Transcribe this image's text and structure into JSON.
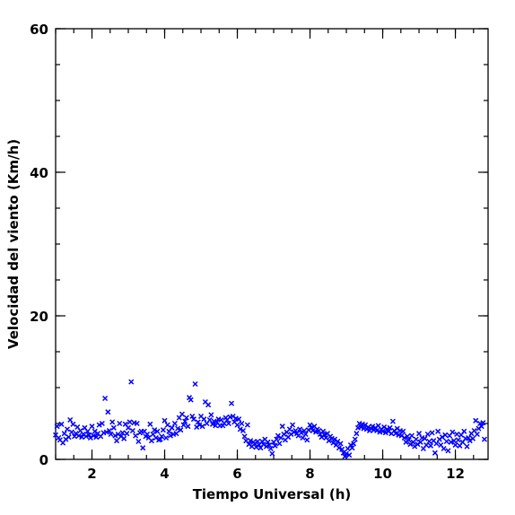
{
  "chart_data": {
    "type": "scatter",
    "xlabel": "Tiempo Universal (h)",
    "ylabel": "Velocidad del viento (Km/h)",
    "xlim": [
      1,
      12.9
    ],
    "ylim": [
      0,
      60
    ],
    "x_ticks": [
      2,
      4,
      6,
      8,
      10,
      12
    ],
    "y_ticks": [
      0,
      20,
      40,
      60
    ],
    "x_minor_step": 0.5,
    "y_minor_step": 5,
    "marker": "x",
    "color": "#0000ff",
    "points": [
      [
        1.0,
        3.4
      ],
      [
        1.04,
        4.6
      ],
      [
        1.08,
        3.0
      ],
      [
        1.12,
        2.7
      ],
      [
        1.16,
        4.9
      ],
      [
        1.2,
        2.3
      ],
      [
        1.24,
        3.6
      ],
      [
        1.28,
        2.8
      ],
      [
        1.32,
        4.2
      ],
      [
        1.36,
        3.1
      ],
      [
        1.4,
        5.5
      ],
      [
        1.44,
        3.8
      ],
      [
        1.48,
        4.9
      ],
      [
        1.52,
        3.2
      ],
      [
        1.56,
        3.6
      ],
      [
        1.6,
        4.5
      ],
      [
        1.64,
        3.3
      ],
      [
        1.68,
        4.0
      ],
      [
        1.72,
        3.1
      ],
      [
        1.76,
        3.5
      ],
      [
        1.8,
        4.4
      ],
      [
        1.84,
        3.2
      ],
      [
        1.88,
        3.9
      ],
      [
        1.92,
        3.4
      ],
      [
        1.96,
        3.0
      ],
      [
        2.0,
        4.6
      ],
      [
        2.04,
        3.3
      ],
      [
        2.08,
        3.9
      ],
      [
        2.12,
        3.1
      ],
      [
        2.16,
        3.6
      ],
      [
        2.2,
        4.8
      ],
      [
        2.24,
        3.2
      ],
      [
        2.28,
        5.0
      ],
      [
        2.32,
        3.7
      ],
      [
        2.36,
        8.5
      ],
      [
        2.4,
        3.8
      ],
      [
        2.44,
        6.6
      ],
      [
        2.48,
        4.0
      ],
      [
        2.52,
        3.5
      ],
      [
        2.56,
        5.2
      ],
      [
        2.6,
        4.4
      ],
      [
        2.64,
        3.3
      ],
      [
        2.68,
        2.6
      ],
      [
        2.72,
        3.5
      ],
      [
        2.76,
        5.0
      ],
      [
        2.8,
        3.2
      ],
      [
        2.84,
        3.7
      ],
      [
        2.88,
        2.9
      ],
      [
        2.92,
        4.9
      ],
      [
        2.96,
        3.6
      ],
      [
        3.0,
        4.4
      ],
      [
        3.04,
        5.2
      ],
      [
        3.08,
        10.8
      ],
      [
        3.12,
        4.0
      ],
      [
        3.16,
        5.1
      ],
      [
        3.2,
        3.3
      ],
      [
        3.24,
        5.0
      ],
      [
        3.28,
        2.5
      ],
      [
        3.32,
        3.7
      ],
      [
        3.36,
        3.9
      ],
      [
        3.4,
        1.6
      ],
      [
        3.44,
        3.9
      ],
      [
        3.48,
        3.2
      ],
      [
        3.52,
        3.5
      ],
      [
        3.56,
        3.0
      ],
      [
        3.6,
        4.9
      ],
      [
        3.64,
        2.6
      ],
      [
        3.68,
        3.5
      ],
      [
        3.72,
        4.1
      ],
      [
        3.76,
        3.0
      ],
      [
        3.8,
        3.9
      ],
      [
        3.84,
        2.7
      ],
      [
        3.88,
        2.8
      ],
      [
        3.92,
        3.2
      ],
      [
        3.96,
        4.1
      ],
      [
        4.0,
        5.4
      ],
      [
        4.04,
        3.0
      ],
      [
        4.08,
        4.8
      ],
      [
        4.12,
        3.9
      ],
      [
        4.16,
        3.3
      ],
      [
        4.2,
        4.4
      ],
      [
        4.24,
        3.5
      ],
      [
        4.28,
        5.0
      ],
      [
        4.32,
        3.6
      ],
      [
        4.36,
        4.3
      ],
      [
        4.4,
        5.8
      ],
      [
        4.44,
        4.1
      ],
      [
        4.48,
        6.3
      ],
      [
        4.52,
        4.8
      ],
      [
        4.56,
        5.3
      ],
      [
        4.6,
        5.8
      ],
      [
        4.64,
        4.6
      ],
      [
        4.68,
        8.6
      ],
      [
        4.72,
        8.3
      ],
      [
        4.76,
        6.0
      ],
      [
        4.8,
        5.6
      ],
      [
        4.84,
        10.5
      ],
      [
        4.88,
        4.5
      ],
      [
        4.92,
        5.2
      ],
      [
        4.96,
        4.8
      ],
      [
        5.0,
        6.0
      ],
      [
        5.04,
        4.6
      ],
      [
        5.08,
        5.6
      ],
      [
        5.12,
        8.0
      ],
      [
        5.16,
        5.0
      ],
      [
        5.2,
        7.6
      ],
      [
        5.24,
        5.5
      ],
      [
        5.28,
        6.2
      ],
      [
        5.32,
        4.9
      ],
      [
        5.36,
        5.3
      ],
      [
        5.4,
        4.7
      ],
      [
        5.44,
        5.2
      ],
      [
        5.48,
        5.6
      ],
      [
        5.52,
        4.7
      ],
      [
        5.56,
        5.5
      ],
      [
        5.6,
        4.7
      ],
      [
        5.64,
        5.0
      ],
      [
        5.68,
        5.8
      ],
      [
        5.72,
        5.5
      ],
      [
        5.76,
        5.0
      ],
      [
        5.8,
        5.9
      ],
      [
        5.84,
        7.8
      ],
      [
        5.88,
        6.0
      ],
      [
        5.92,
        5.2
      ],
      [
        5.96,
        5.7
      ],
      [
        6.0,
        4.8
      ],
      [
        6.04,
        5.6
      ],
      [
        6.08,
        4.2
      ],
      [
        6.12,
        5.0
      ],
      [
        6.16,
        4.0
      ],
      [
        6.2,
        3.2
      ],
      [
        6.24,
        2.6
      ],
      [
        6.28,
        4.8
      ],
      [
        6.32,
        2.1
      ],
      [
        6.36,
        2.6
      ],
      [
        6.4,
        1.8
      ],
      [
        6.44,
        2.4
      ],
      [
        6.48,
        2.2
      ],
      [
        6.52,
        1.7
      ],
      [
        6.56,
        2.5
      ],
      [
        6.6,
        2.0
      ],
      [
        6.64,
        1.6
      ],
      [
        6.68,
        2.5
      ],
      [
        6.72,
        2.1
      ],
      [
        6.76,
        2.8
      ],
      [
        6.8,
        1.8
      ],
      [
        6.84,
        2.4
      ],
      [
        6.88,
        2.0
      ],
      [
        6.92,
        1.5
      ],
      [
        6.96,
        0.8
      ],
      [
        7.0,
        2.4
      ],
      [
        7.04,
        1.9
      ],
      [
        7.08,
        2.8
      ],
      [
        7.12,
        3.3
      ],
      [
        7.16,
        2.2
      ],
      [
        7.2,
        3.0
      ],
      [
        7.24,
        4.6
      ],
      [
        7.28,
        3.5
      ],
      [
        7.32,
        2.7
      ],
      [
        7.36,
        3.8
      ],
      [
        7.4,
        3.1
      ],
      [
        7.44,
        4.2
      ],
      [
        7.48,
        3.5
      ],
      [
        7.52,
        4.8
      ],
      [
        7.56,
        3.8
      ],
      [
        7.6,
        4.0
      ],
      [
        7.64,
        3.6
      ],
      [
        7.68,
        3.3
      ],
      [
        7.72,
        4.2
      ],
      [
        7.76,
        3.7
      ],
      [
        7.8,
        3.0
      ],
      [
        7.84,
        4.0
      ],
      [
        7.88,
        3.5
      ],
      [
        7.92,
        2.7
      ],
      [
        7.96,
        4.1
      ],
      [
        8.0,
        4.8
      ],
      [
        8.04,
        4.4
      ],
      [
        8.08,
        4.0
      ],
      [
        8.12,
        4.6
      ],
      [
        8.16,
        3.8
      ],
      [
        8.2,
        4.2
      ],
      [
        8.24,
        4.0
      ],
      [
        8.28,
        3.5
      ],
      [
        8.32,
        3.1
      ],
      [
        8.36,
        3.9
      ],
      [
        8.4,
        3.4
      ],
      [
        8.44,
        3.0
      ],
      [
        8.48,
        3.6
      ],
      [
        8.52,
        2.6
      ],
      [
        8.56,
        3.2
      ],
      [
        8.6,
        2.9
      ],
      [
        8.64,
        2.3
      ],
      [
        8.68,
        2.8
      ],
      [
        8.72,
        2.0
      ],
      [
        8.76,
        2.5
      ],
      [
        8.8,
        1.6
      ],
      [
        8.84,
        2.2
      ],
      [
        8.88,
        1.4
      ],
      [
        8.92,
        0.9
      ],
      [
        8.96,
        0.4
      ],
      [
        9.0,
        0.8
      ],
      [
        9.04,
        1.5
      ],
      [
        9.08,
        0.6
      ],
      [
        9.12,
        2.0
      ],
      [
        9.16,
        1.6
      ],
      [
        9.2,
        2.2
      ],
      [
        9.24,
        2.8
      ],
      [
        9.28,
        3.6
      ],
      [
        9.32,
        4.4
      ],
      [
        9.36,
        5.0
      ],
      [
        9.4,
        4.5
      ],
      [
        9.44,
        4.9
      ],
      [
        9.48,
        4.3
      ],
      [
        9.52,
        4.8
      ],
      [
        9.56,
        4.2
      ],
      [
        9.6,
        4.5
      ],
      [
        9.64,
        4.0
      ],
      [
        9.68,
        4.3
      ],
      [
        9.72,
        4.6
      ],
      [
        9.76,
        4.1
      ],
      [
        9.8,
        4.4
      ],
      [
        9.84,
        4.0
      ],
      [
        9.88,
        4.7
      ],
      [
        9.92,
        3.8
      ],
      [
        9.96,
        4.2
      ],
      [
        10.0,
        3.9
      ],
      [
        10.04,
        4.5
      ],
      [
        10.08,
        3.7
      ],
      [
        10.12,
        4.2
      ],
      [
        10.16,
        3.9
      ],
      [
        10.2,
        4.4
      ],
      [
        10.24,
        3.6
      ],
      [
        10.28,
        5.3
      ],
      [
        10.32,
        4.0
      ],
      [
        10.36,
        3.6
      ],
      [
        10.4,
        4.3
      ],
      [
        10.44,
        3.4
      ],
      [
        10.48,
        4.0
      ],
      [
        10.52,
        3.3
      ],
      [
        10.56,
        3.9
      ],
      [
        10.6,
        3.0
      ],
      [
        10.64,
        2.4
      ],
      [
        10.68,
        3.2
      ],
      [
        10.72,
        2.7
      ],
      [
        10.76,
        2.1
      ],
      [
        10.8,
        3.3
      ],
      [
        10.84,
        2.4
      ],
      [
        10.88,
        1.8
      ],
      [
        10.92,
        2.8
      ],
      [
        10.96,
        2.1
      ],
      [
        11.0,
        3.6
      ],
      [
        11.04,
        2.4
      ],
      [
        11.08,
        3.0
      ],
      [
        11.12,
        1.5
      ],
      [
        11.16,
        2.9
      ],
      [
        11.2,
        2.0
      ],
      [
        11.24,
        3.5
      ],
      [
        11.28,
        2.5
      ],
      [
        11.32,
        1.9
      ],
      [
        11.36,
        3.7
      ],
      [
        11.4,
        2.6
      ],
      [
        11.44,
        0.9
      ],
      [
        11.48,
        2.2
      ],
      [
        11.52,
        3.9
      ],
      [
        11.56,
        2.8
      ],
      [
        11.6,
        2.0
      ],
      [
        11.64,
        3.1
      ],
      [
        11.68,
        1.5
      ],
      [
        11.72,
        3.4
      ],
      [
        11.76,
        2.5
      ],
      [
        11.8,
        1.2
      ],
      [
        11.84,
        3.3
      ],
      [
        11.88,
        2.4
      ],
      [
        11.92,
        3.8
      ],
      [
        11.96,
        2.6
      ],
      [
        12.0,
        2.0
      ],
      [
        12.04,
        3.5
      ],
      [
        12.08,
        2.7
      ],
      [
        12.12,
        1.9
      ],
      [
        12.16,
        3.4
      ],
      [
        12.2,
        2.4
      ],
      [
        12.24,
        3.9
      ],
      [
        12.28,
        2.9
      ],
      [
        12.32,
        1.8
      ],
      [
        12.36,
        3.0
      ],
      [
        12.4,
        2.6
      ],
      [
        12.44,
        3.6
      ],
      [
        12.48,
        2.9
      ],
      [
        12.52,
        4.0
      ],
      [
        12.56,
        5.4
      ],
      [
        12.6,
        3.5
      ],
      [
        12.64,
        4.3
      ],
      [
        12.68,
        5.0
      ],
      [
        12.72,
        4.6
      ],
      [
        12.76,
        5.1
      ],
      [
        12.8,
        2.8
      ]
    ]
  }
}
